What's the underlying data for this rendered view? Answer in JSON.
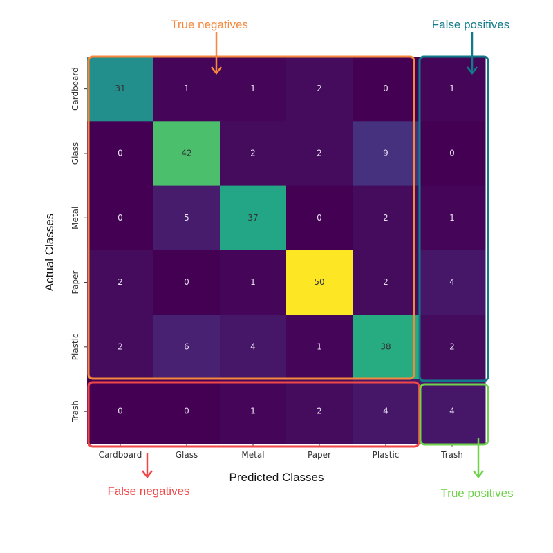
{
  "chart_data": {
    "type": "heatmap",
    "title": "",
    "xlabel": "Predicted Classes",
    "ylabel": "Actual Classes",
    "x_categories": [
      "Cardboard",
      "Glass",
      "Metal",
      "Paper",
      "Plastic",
      "Trash"
    ],
    "y_categories": [
      "Cardboard",
      "Glass",
      "Metal",
      "Paper",
      "Plastic",
      "Trash"
    ],
    "values": [
      [
        31,
        1,
        1,
        2,
        0,
        1
      ],
      [
        0,
        42,
        2,
        2,
        9,
        0
      ],
      [
        0,
        5,
        37,
        0,
        2,
        1
      ],
      [
        2,
        0,
        1,
        50,
        2,
        4
      ],
      [
        2,
        6,
        4,
        1,
        38,
        2
      ],
      [
        0,
        0,
        1,
        2,
        4,
        4
      ]
    ],
    "colormap": "viridis",
    "vmin": 0,
    "vmax": 50,
    "annotations": [
      {
        "label": "True negatives",
        "color": "#f5883c"
      },
      {
        "label": "False positives",
        "color": "#107a8b"
      },
      {
        "label": "False negatives",
        "color": "#f04848"
      },
      {
        "label": "True positives",
        "color": "#6fd24a"
      }
    ]
  }
}
